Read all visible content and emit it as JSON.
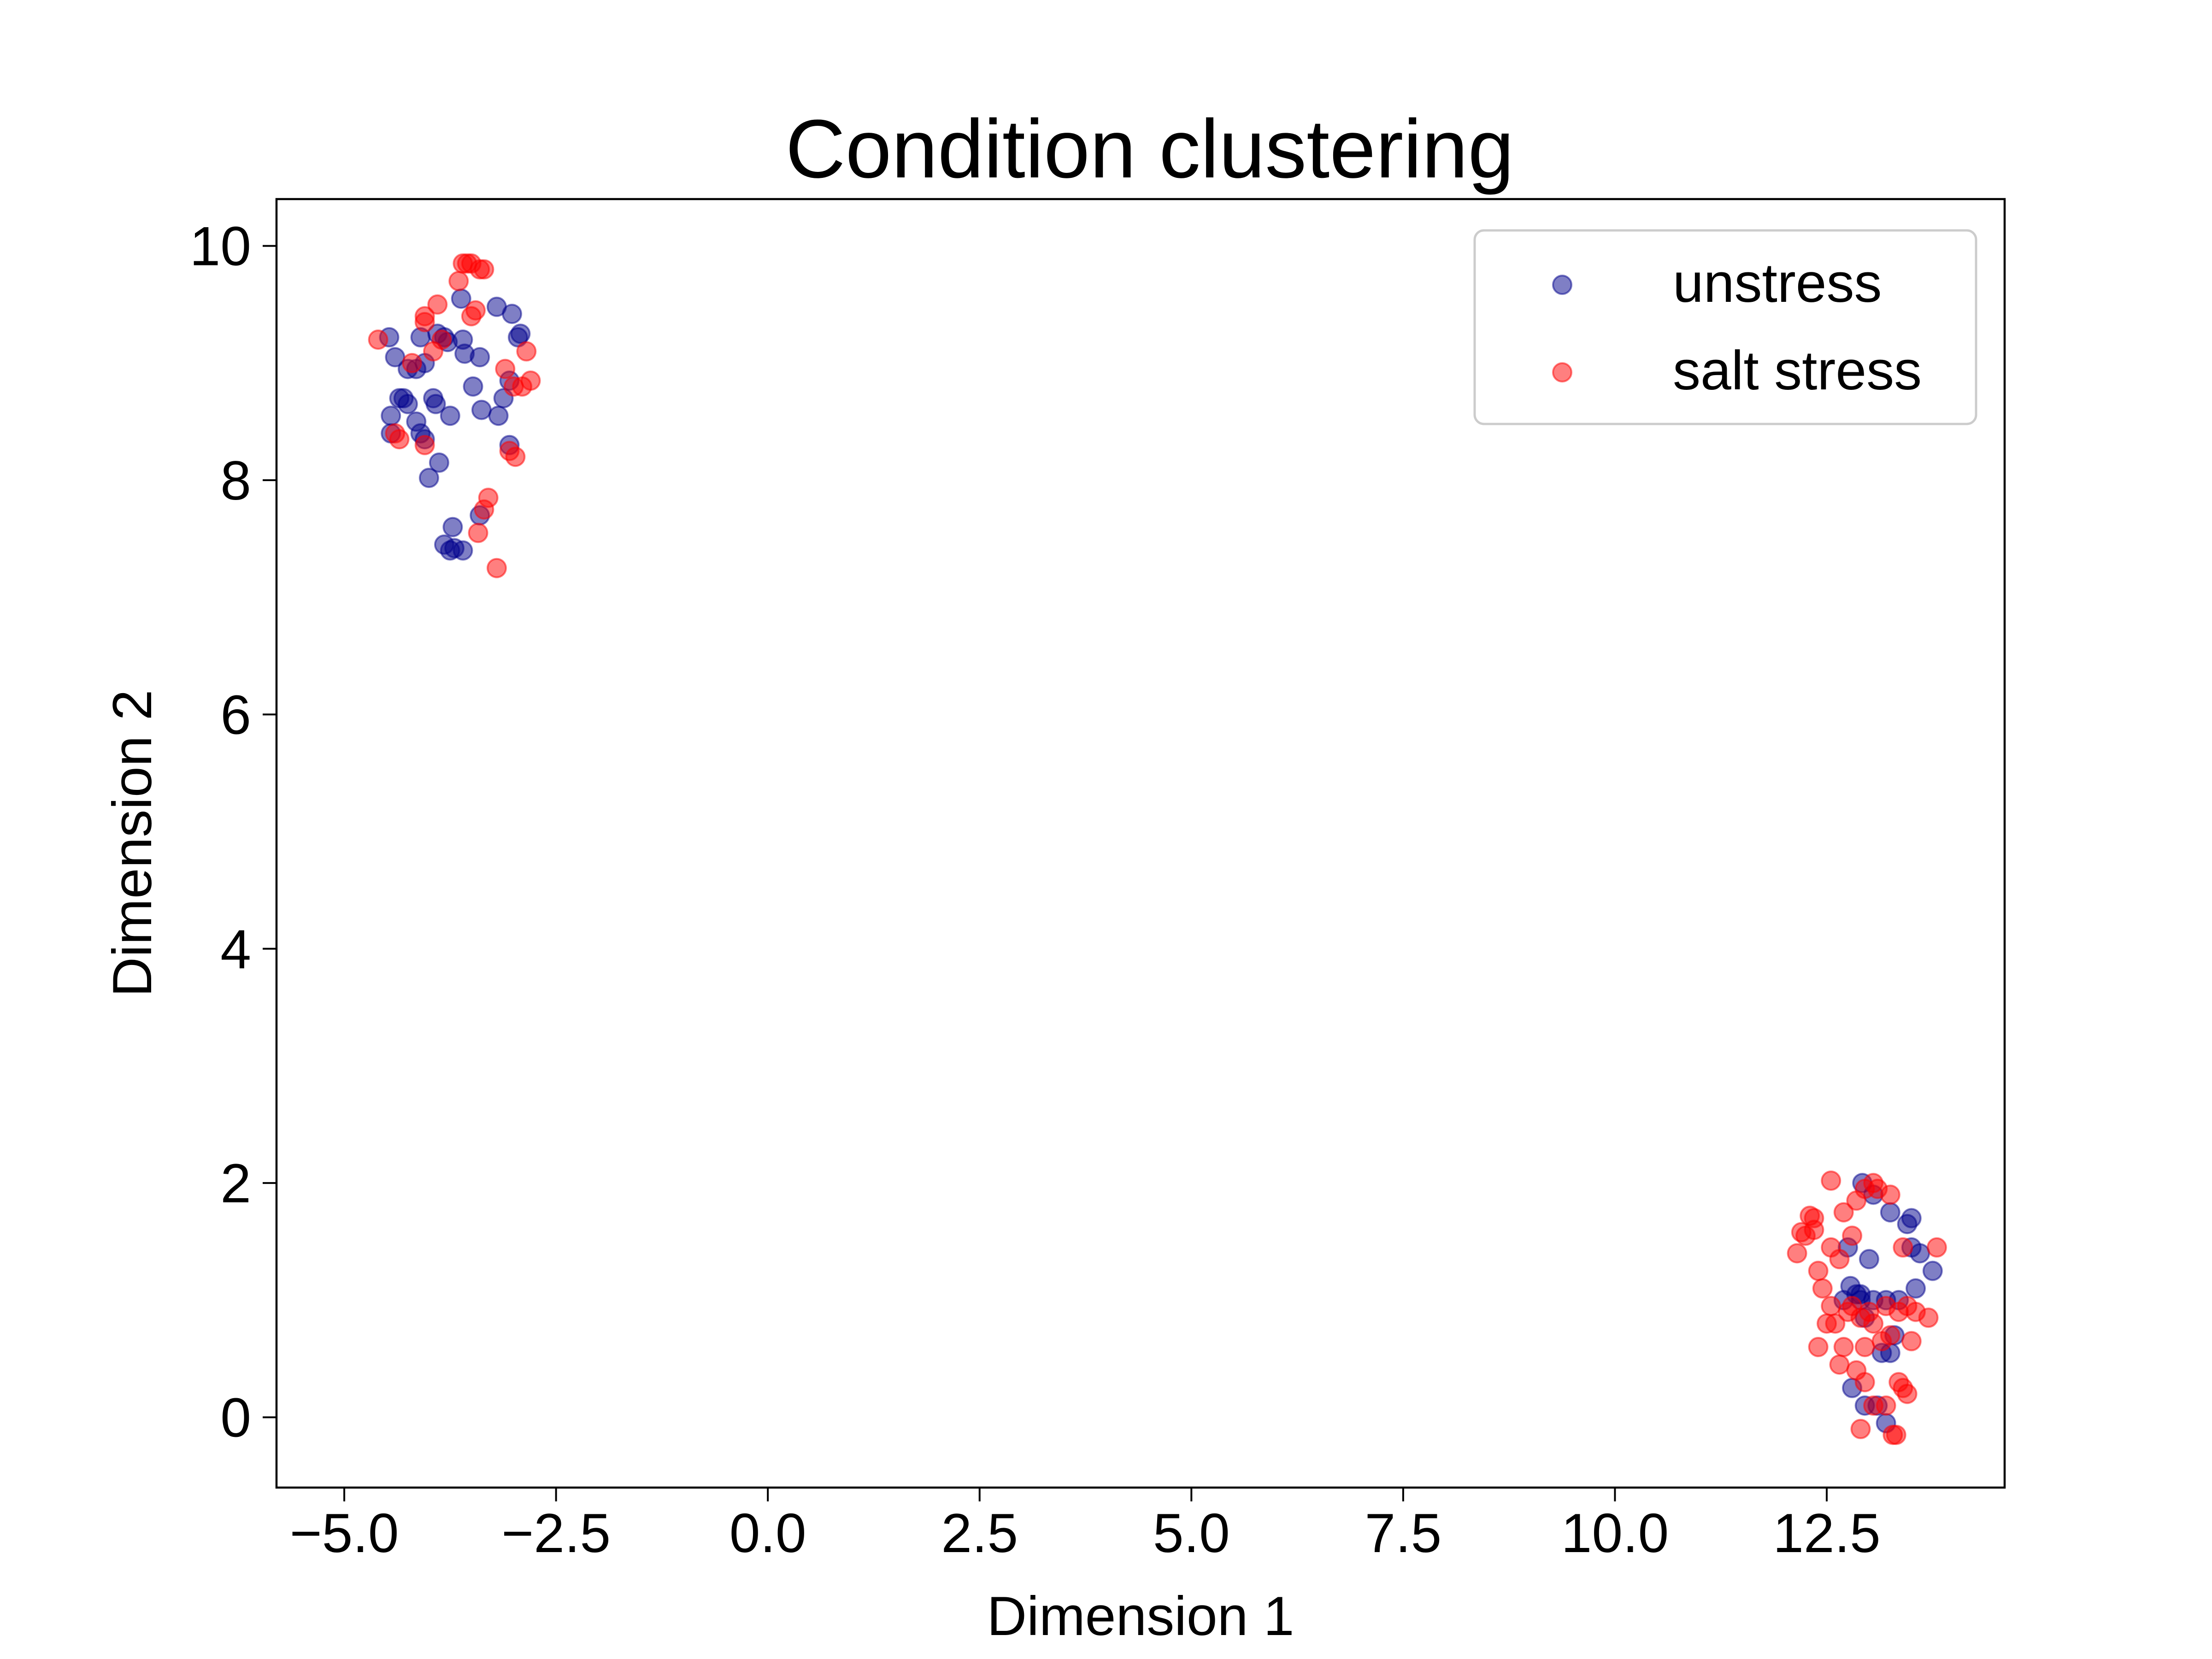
{
  "chart_data": {
    "type": "scatter",
    "title": "Condition clustering",
    "xlabel": "Dimension 1",
    "ylabel": "Dimension 2",
    "xlim": [
      -5.8,
      14.6
    ],
    "ylim": [
      -0.6,
      10.4
    ],
    "x_ticks": [
      -5.0,
      -2.5,
      0.0,
      2.5,
      5.0,
      7.5,
      10.0,
      12.5
    ],
    "x_tick_labels": [
      "−5.0",
      "−2.5",
      "0.0",
      "2.5",
      "5.0",
      "7.5",
      "10.0",
      "12.5"
    ],
    "y_ticks": [
      0,
      2,
      4,
      6,
      8,
      10
    ],
    "y_tick_labels": [
      "0",
      "2",
      "4",
      "6",
      "8",
      "10"
    ],
    "grid": false,
    "legend_position": "top-right",
    "series": [
      {
        "name": "unstress",
        "color": "#00008b",
        "alpha": 0.5,
        "points": [
          [
            -4.47,
            9.22
          ],
          [
            -4.4,
            9.05
          ],
          [
            -4.25,
            8.95
          ],
          [
            -4.15,
            8.95
          ],
          [
            -4.05,
            9.0
          ],
          [
            -4.1,
            9.22
          ],
          [
            -3.9,
            9.25
          ],
          [
            -3.82,
            9.22
          ],
          [
            -3.78,
            9.18
          ],
          [
            -3.6,
            9.2
          ],
          [
            -3.62,
            9.55
          ],
          [
            -3.58,
            9.08
          ],
          [
            -3.4,
            9.05
          ],
          [
            -3.2,
            9.48
          ],
          [
            -3.02,
            9.42
          ],
          [
            -2.95,
            9.22
          ],
          [
            -2.92,
            9.25
          ],
          [
            -4.45,
            8.55
          ],
          [
            -4.35,
            8.7
          ],
          [
            -4.3,
            8.7
          ],
          [
            -4.25,
            8.65
          ],
          [
            -4.15,
            8.5
          ],
          [
            -4.1,
            8.4
          ],
          [
            -4.05,
            8.35
          ],
          [
            -3.95,
            8.7
          ],
          [
            -3.92,
            8.65
          ],
          [
            -3.75,
            8.55
          ],
          [
            -3.48,
            8.8
          ],
          [
            -3.38,
            8.6
          ],
          [
            -3.18,
            8.55
          ],
          [
            -3.12,
            8.7
          ],
          [
            -3.05,
            8.85
          ],
          [
            -3.05,
            8.3
          ],
          [
            -4.0,
            8.02
          ],
          [
            -3.88,
            8.15
          ],
          [
            -3.72,
            7.6
          ],
          [
            -3.82,
            7.45
          ],
          [
            -3.75,
            7.4
          ],
          [
            -3.7,
            7.42
          ],
          [
            -3.6,
            7.4
          ],
          [
            -3.4,
            7.7
          ],
          [
            -4.45,
            8.4
          ],
          [
            12.75,
            1.45
          ],
          [
            12.78,
            1.12
          ],
          [
            12.85,
            1.05
          ],
          [
            12.92,
            2.0
          ],
          [
            13.0,
            1.35
          ],
          [
            12.9,
            1.0
          ],
          [
            12.95,
            0.85
          ],
          [
            13.05,
            1.0
          ],
          [
            12.8,
            0.25
          ],
          [
            12.95,
            0.1
          ],
          [
            13.1,
            0.1
          ],
          [
            13.15,
            0.55
          ],
          [
            13.25,
            0.55
          ],
          [
            13.3,
            0.7
          ],
          [
            13.2,
            1.0
          ],
          [
            13.35,
            1.0
          ],
          [
            13.25,
            1.75
          ],
          [
            13.45,
            1.65
          ],
          [
            13.5,
            1.7
          ],
          [
            13.5,
            1.45
          ],
          [
            13.6,
            1.4
          ],
          [
            13.75,
            1.25
          ],
          [
            13.55,
            1.1
          ],
          [
            12.9,
            1.05
          ],
          [
            12.7,
            1.0
          ],
          [
            13.2,
            -0.05
          ],
          [
            13.05,
            1.9
          ]
        ]
      },
      {
        "name": "salt stress",
        "color": "#ff0000",
        "alpha": 0.5,
        "points": [
          [
            -4.6,
            9.2
          ],
          [
            -4.05,
            9.35
          ],
          [
            -4.05,
            9.4
          ],
          [
            -3.95,
            9.1
          ],
          [
            -3.9,
            9.5
          ],
          [
            -3.65,
            9.7
          ],
          [
            -3.6,
            9.85
          ],
          [
            -3.55,
            9.85
          ],
          [
            -3.5,
            9.85
          ],
          [
            -3.4,
            9.8
          ],
          [
            -3.35,
            9.8
          ],
          [
            -3.45,
            9.45
          ],
          [
            -3.5,
            9.4
          ],
          [
            -3.1,
            8.95
          ],
          [
            -3.0,
            8.8
          ],
          [
            -2.9,
            8.8
          ],
          [
            -2.85,
            9.1
          ],
          [
            -2.8,
            8.85
          ],
          [
            -3.05,
            8.25
          ],
          [
            -2.98,
            8.2
          ],
          [
            -4.4,
            8.4
          ],
          [
            -4.35,
            8.35
          ],
          [
            -4.05,
            8.3
          ],
          [
            -3.85,
            9.2
          ],
          [
            -3.3,
            7.85
          ],
          [
            -3.35,
            7.75
          ],
          [
            -3.42,
            7.55
          ],
          [
            -3.2,
            7.25
          ],
          [
            -4.2,
            9.0
          ],
          [
            12.55,
            2.02
          ],
          [
            12.3,
            1.72
          ],
          [
            12.35,
            1.7
          ],
          [
            12.2,
            1.58
          ],
          [
            12.25,
            1.55
          ],
          [
            12.35,
            1.6
          ],
          [
            12.15,
            1.4
          ],
          [
            12.55,
            1.45
          ],
          [
            12.65,
            1.35
          ],
          [
            12.8,
            1.55
          ],
          [
            12.85,
            1.85
          ],
          [
            12.95,
            1.95
          ],
          [
            13.05,
            2.0
          ],
          [
            13.1,
            1.95
          ],
          [
            13.25,
            1.9
          ],
          [
            12.7,
            1.75
          ],
          [
            12.4,
            1.25
          ],
          [
            12.45,
            1.1
          ],
          [
            12.55,
            0.95
          ],
          [
            12.6,
            0.8
          ],
          [
            12.5,
            0.8
          ],
          [
            12.4,
            0.6
          ],
          [
            12.7,
            0.6
          ],
          [
            12.65,
            0.45
          ],
          [
            12.8,
            0.95
          ],
          [
            12.9,
            0.85
          ],
          [
            12.95,
            0.6
          ],
          [
            13.05,
            0.8
          ],
          [
            13.0,
            0.9
          ],
          [
            13.15,
            0.65
          ],
          [
            13.2,
            0.95
          ],
          [
            13.25,
            0.7
          ],
          [
            13.35,
            0.9
          ],
          [
            13.45,
            0.95
          ],
          [
            13.55,
            0.9
          ],
          [
            13.7,
            0.85
          ],
          [
            13.5,
            0.65
          ],
          [
            13.35,
            0.3
          ],
          [
            13.45,
            0.2
          ],
          [
            13.4,
            0.25
          ],
          [
            12.95,
            0.3
          ],
          [
            13.05,
            0.1
          ],
          [
            12.9,
            -0.1
          ],
          [
            13.2,
            0.1
          ],
          [
            13.28,
            -0.15
          ],
          [
            13.32,
            -0.15
          ],
          [
            13.4,
            1.45
          ],
          [
            13.8,
            1.45
          ],
          [
            12.75,
            0.9
          ],
          [
            12.85,
            0.4
          ]
        ]
      }
    ]
  }
}
